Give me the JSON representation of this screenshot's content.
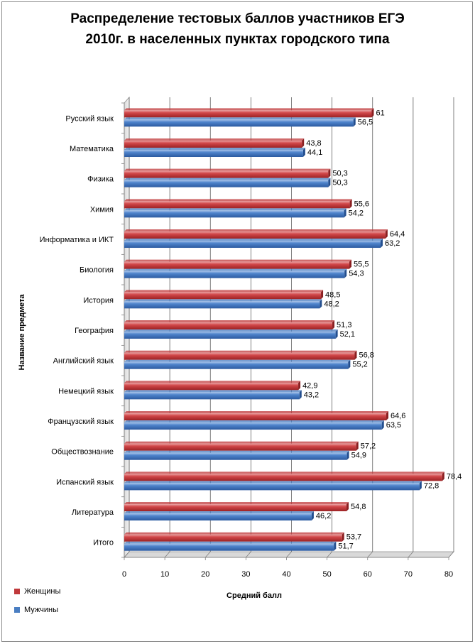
{
  "chart_data": {
    "type": "bar",
    "orientation": "horizontal",
    "title_lines": [
      "Распределение тестовых баллов участников ЕГЭ",
      "2010г. в населенных пунктах городского типа"
    ],
    "xlabel": "Средний балл",
    "ylabel": "Название предмета",
    "xlim": [
      0,
      80
    ],
    "xticks": [
      0,
      10,
      20,
      30,
      40,
      50,
      60,
      70,
      80
    ],
    "grid": true,
    "legend_position": "bottom-left",
    "categories": [
      "Русский язык",
      "Математика",
      "Физика",
      "Химия",
      "Информатика и ИКТ",
      "Биология",
      "История",
      "География",
      "Английский язык",
      "Немецкий язык",
      "Французский язык",
      "Обществознание",
      "Испанский язык",
      "Литература",
      "Итого"
    ],
    "series": [
      {
        "name": "Женщины",
        "color": "#c0393b",
        "values": [
          61,
          43.8,
          50.3,
          55.6,
          64.4,
          55.5,
          48.5,
          51.3,
          56.8,
          42.9,
          64.6,
          57.2,
          78.4,
          54.8,
          53.7
        ],
        "labels": [
          "61",
          "43,8",
          "50,3",
          "55,6",
          "64,4",
          "55,5",
          "48,5",
          "51,3",
          "56,8",
          "42,9",
          "64,6",
          "57,2",
          "78,4",
          "54,8",
          "53,7"
        ]
      },
      {
        "name": "Мужчины",
        "color": "#4a7ec2",
        "values": [
          56.5,
          44.1,
          50.3,
          54.2,
          63.2,
          54.3,
          48.2,
          52.1,
          55.2,
          43.2,
          63.5,
          54.9,
          72.8,
          46.2,
          51.7
        ],
        "labels": [
          "56,5",
          "44,1",
          "50,3",
          "54,2",
          "63,2",
          "54,3",
          "48,2",
          "52,1",
          "55,2",
          "43,2",
          "63,5",
          "54,9",
          "72,8",
          "46,2",
          "51,7"
        ]
      }
    ]
  }
}
